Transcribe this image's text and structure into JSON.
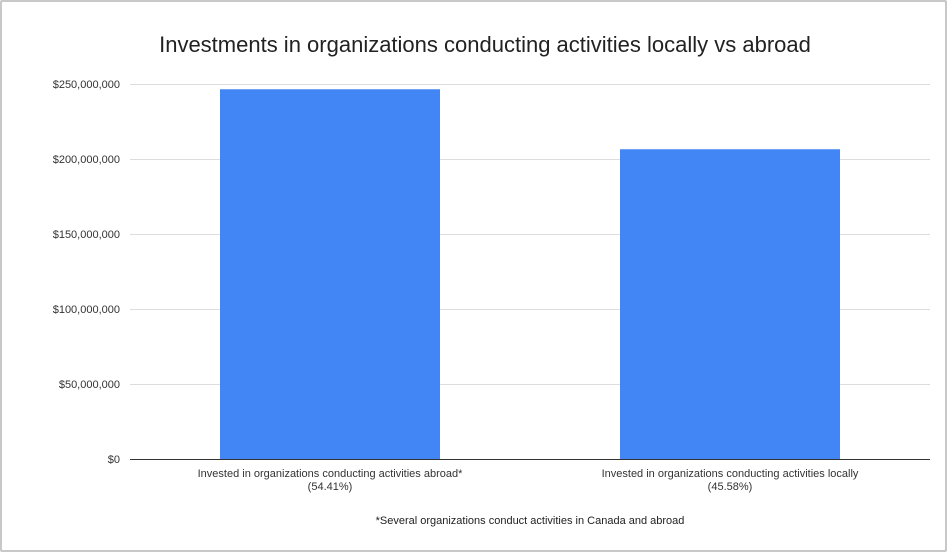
{
  "chart_data": {
    "type": "bar",
    "title": "Investments in organizations conducting activities locally vs abroad",
    "xlabel": "",
    "ylabel": "",
    "categories": [
      [
        "Invested in organizations conducting activities abroad*",
        "(54.41%)"
      ],
      [
        "Invested in organizations conducting activities locally",
        "(45.58%)"
      ]
    ],
    "values": [
      246500000,
      206500000
    ],
    "ylim": [
      0,
      250000000
    ],
    "yticks": [
      "$0",
      "$50,000,000",
      "$100,000,000",
      "$150,000,000",
      "$200,000,000",
      "$250,000,000"
    ],
    "ytick_values": [
      0,
      50000000,
      100000000,
      150000000,
      200000000,
      250000000
    ],
    "grid": true,
    "bar_color": "#4285f4",
    "footnote": "*Several organizations conduct activities in Canada and abroad"
  }
}
